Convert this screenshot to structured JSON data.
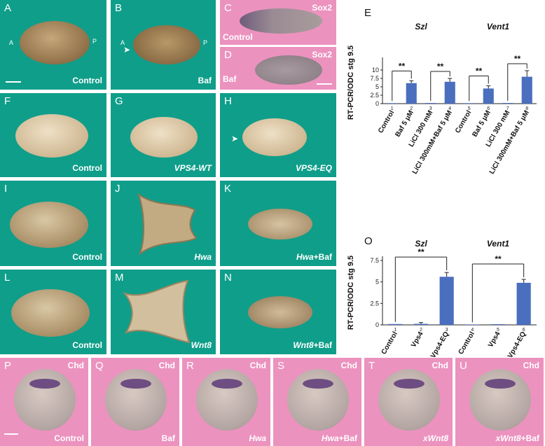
{
  "panels": {
    "A": {
      "label": "A",
      "caption": "Control",
      "a": "A",
      "p": "P"
    },
    "B": {
      "label": "B",
      "caption": "Baf",
      "a": "A",
      "p": "P"
    },
    "C": {
      "label": "C",
      "marker": "Sox2",
      "caption": "Control"
    },
    "D": {
      "label": "D",
      "marker": "Sox2",
      "caption": "Baf"
    },
    "E": {
      "label": "E"
    },
    "F": {
      "label": "F",
      "caption": "Control"
    },
    "G": {
      "label": "G",
      "caption": "VPS4-WT"
    },
    "H": {
      "label": "H",
      "caption": "VPS4-EQ"
    },
    "I": {
      "label": "I",
      "caption": "Control"
    },
    "J": {
      "label": "J",
      "caption": "Hwa"
    },
    "K": {
      "label": "K",
      "caption_italic": "Hwa",
      "caption_rest": "+Baf"
    },
    "L": {
      "label": "L",
      "caption": "Control"
    },
    "M": {
      "label": "M",
      "caption": "Wnt8"
    },
    "N": {
      "label": "N",
      "caption_italic": "Wnt8",
      "caption_rest": "+Baf"
    },
    "O": {
      "label": "O"
    },
    "P": {
      "label": "P",
      "marker": "Chd",
      "caption": "Control"
    },
    "Q": {
      "label": "Q",
      "marker": "Chd",
      "caption": "Baf"
    },
    "R": {
      "label": "R",
      "marker": "Chd",
      "caption": "Hwa"
    },
    "S": {
      "label": "S",
      "marker": "Chd",
      "caption_italic": "Hwa",
      "caption_rest": "+Baf"
    },
    "T": {
      "label": "T",
      "marker": "Chd",
      "caption": "xWnt8"
    },
    "U": {
      "label": "U",
      "marker": "Chd",
      "caption_italic": "xWnt8",
      "caption_rest": "+Baf"
    }
  },
  "chart_data": [
    {
      "type": "bar",
      "panel": "E",
      "ylabel": "RT-PCR/ODC stg 9.5",
      "ylim": [
        0,
        12.5
      ],
      "yticks": [
        "0",
        "2.5",
        "5",
        "7.5",
        "10"
      ],
      "groups": [
        "Szl",
        "Vent1"
      ],
      "categories": [
        "Control",
        "Baf 5 μM",
        "LiCl 300 mM",
        "LiCl 300mM+Baf 5 μM",
        "Control",
        "Baf 5 μM",
        "LiCl 300 mM",
        "LiCl 300mM+Baf 5 μM"
      ],
      "lane_numbers": [
        "1",
        "2",
        "3",
        "4",
        "5",
        "6",
        "7",
        "8"
      ],
      "values": [
        0.15,
        6.1,
        0.2,
        6.5,
        0.15,
        4.5,
        0.2,
        8.0
      ],
      "errors": [
        0.05,
        0.7,
        0.05,
        1.0,
        0.05,
        0.8,
        0.05,
        1.8
      ],
      "significance": [
        {
          "from": 1,
          "to": 2,
          "label": "**"
        },
        {
          "from": 3,
          "to": 4,
          "label": "**"
        },
        {
          "from": 5,
          "to": 6,
          "label": "**"
        },
        {
          "from": 7,
          "to": 8,
          "label": "**"
        }
      ],
      "color": "#4a6fbf"
    },
    {
      "type": "bar",
      "panel": "O",
      "ylabel": "RT-PCR/ODC stg 9.5",
      "ylim": [
        0,
        7.5
      ],
      "yticks": [
        "0",
        "2.5",
        "5",
        "7.5"
      ],
      "groups": [
        "Szl",
        "Vent1"
      ],
      "categories": [
        "Control",
        "Vps4",
        "Vps4-EQ",
        "Control",
        "Vps4",
        "Vps4-EQ"
      ],
      "lane_numbers": [
        "1",
        "2",
        "3",
        "4",
        "5",
        "6"
      ],
      "values": [
        0.1,
        0.12,
        5.6,
        0.05,
        0.08,
        4.9
      ],
      "errors": [
        0.05,
        0.15,
        0.5,
        0.03,
        0.05,
        0.4
      ],
      "significance": [
        {
          "from": 1,
          "to": 3,
          "label": "**"
        },
        {
          "from": 4,
          "to": 6,
          "label": "**"
        }
      ],
      "color": "#4a6fbf"
    }
  ]
}
